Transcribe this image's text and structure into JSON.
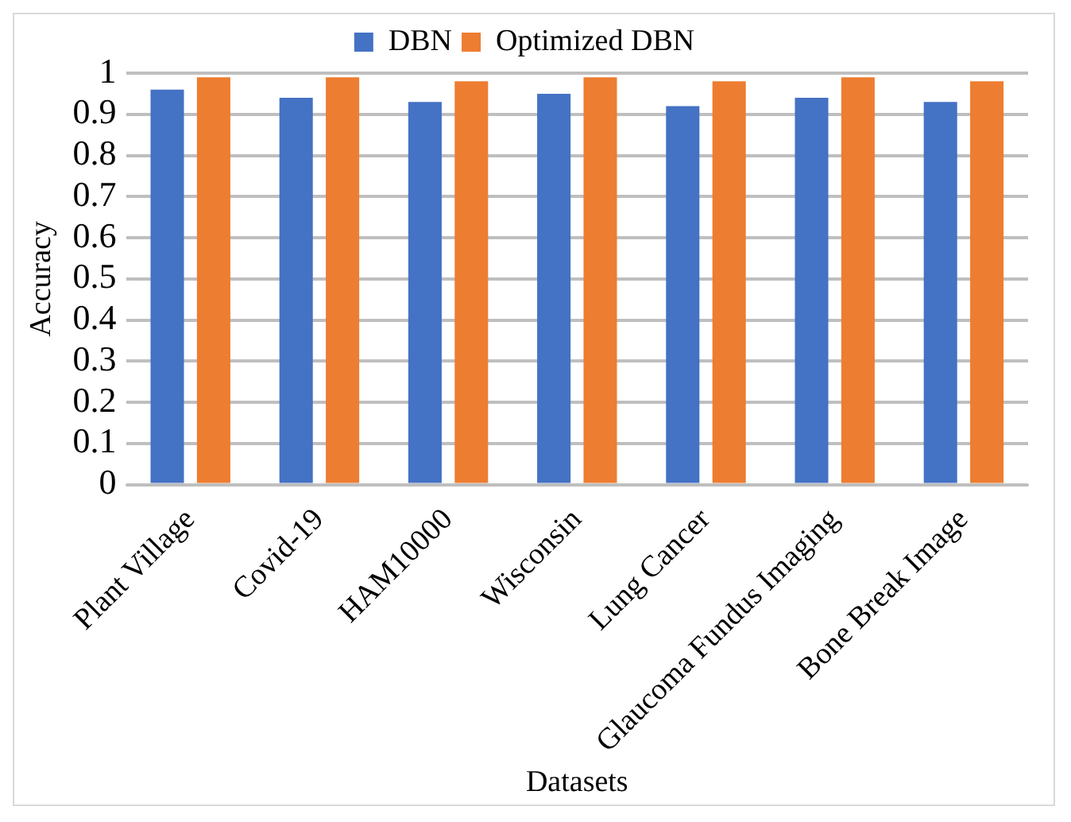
{
  "chart_data": {
    "type": "bar",
    "xlabel": "Datasets",
    "ylabel": "Accuracy",
    "categories": [
      "Plant Village",
      "Covid-19",
      "HAM10000",
      "Wisconsin",
      "Lung Cancer",
      "Glaucoma Fundus Imaging",
      "Bone Break Image"
    ],
    "series": [
      {
        "name": "DBN",
        "color": "#4472c4",
        "values": [
          0.96,
          0.94,
          0.93,
          0.95,
          0.92,
          0.94,
          0.93
        ]
      },
      {
        "name": "Optimized DBN",
        "color": "#ed7d31",
        "values": [
          0.99,
          0.99,
          0.98,
          0.99,
          0.98,
          0.99,
          0.98
        ]
      }
    ],
    "ylim": [
      0,
      1
    ],
    "yticks": [
      0,
      0.1,
      0.2,
      0.3,
      0.4,
      0.5,
      0.6,
      0.7,
      0.8,
      0.9,
      1
    ],
    "grid": "y",
    "legend": "top"
  }
}
